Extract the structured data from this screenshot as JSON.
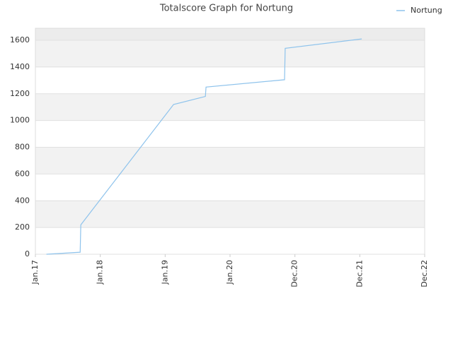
{
  "chart_data": {
    "type": "line",
    "title": "Totalscore Graph for Nortung",
    "series": [
      {
        "name": "Nortung",
        "color": "#8ec3ec",
        "x": [
          0.17,
          0.69,
          0.7,
          2.13,
          2.62,
          2.63,
          3.84,
          3.85,
          5.03
        ],
        "values": [
          0,
          15,
          220,
          1120,
          1180,
          1250,
          1305,
          1540,
          1610
        ]
      }
    ],
    "xlim": [
      0,
      6
    ],
    "xticks": [
      {
        "value": 0,
        "label": "Jan.17"
      },
      {
        "value": 1,
        "label": "Jan.18"
      },
      {
        "value": 2,
        "label": "Jan.19"
      },
      {
        "value": 3,
        "label": "Jan.20"
      },
      {
        "value": 4,
        "label": "Dec.20"
      },
      {
        "value": 5,
        "label": "Dec.21"
      },
      {
        "value": 6,
        "label": "Dec.22"
      }
    ],
    "ylim": [
      0,
      1690
    ],
    "yticks": [
      0,
      200,
      400,
      600,
      800,
      1000,
      1200,
      1400,
      1600
    ],
    "grid": true,
    "legend": "top-right"
  }
}
